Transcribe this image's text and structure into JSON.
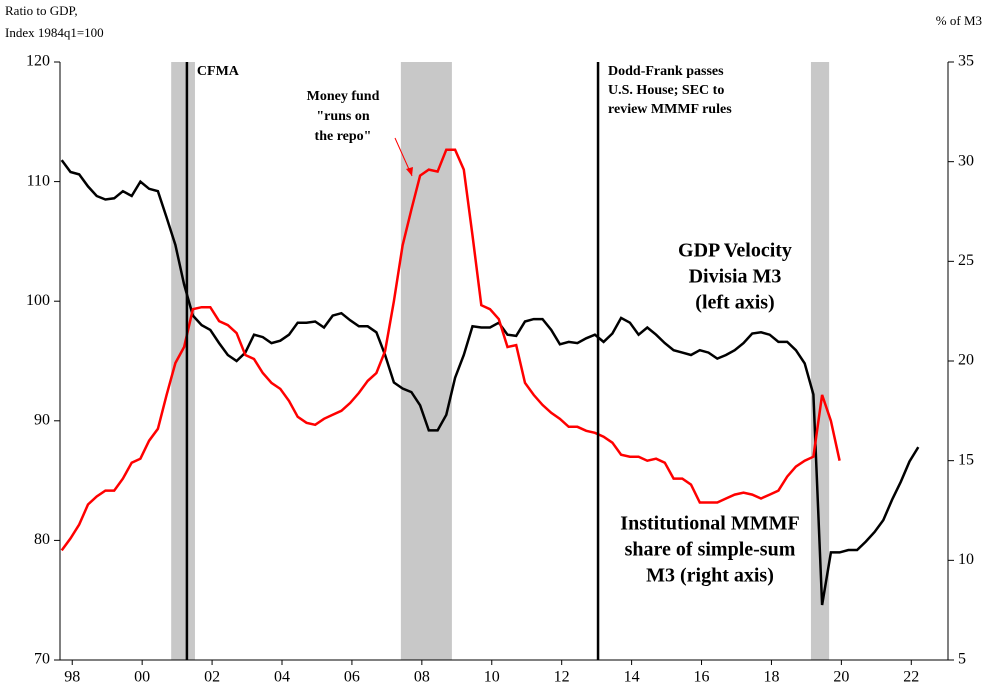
{
  "chart_data": {
    "type": "line",
    "y_axis_label": [
      "Ratio to GDP,",
      "Index 1984q1=100"
    ],
    "y2_axis_label": "% of M3",
    "xlim": [
      1997.65,
      2023.05
    ],
    "xticks": [
      {
        "value": 1998,
        "label": "98"
      },
      {
        "value": 2000,
        "label": "00"
      },
      {
        "value": 2002,
        "label": "02"
      },
      {
        "value": 2004,
        "label": "04"
      },
      {
        "value": 2006,
        "label": "06"
      },
      {
        "value": 2008,
        "label": "08"
      },
      {
        "value": 2010,
        "label": "10"
      },
      {
        "value": 2012,
        "label": "12"
      },
      {
        "value": 2014,
        "label": "14"
      },
      {
        "value": 2016,
        "label": "16"
      },
      {
        "value": 2018,
        "label": "18"
      },
      {
        "value": 2020,
        "label": "20"
      },
      {
        "value": 2022,
        "label": "22"
      }
    ],
    "ylim": [
      70,
      120
    ],
    "yticks": [
      70,
      80,
      90,
      100,
      110,
      120
    ],
    "y2lim": [
      5,
      35
    ],
    "y2ticks": [
      5,
      10,
      15,
      20,
      25,
      30,
      35
    ],
    "shaded_periods": [
      [
        2000.83,
        2001.51
      ],
      [
        2007.4,
        2008.86
      ],
      [
        2019.13,
        2019.65
      ]
    ],
    "shade_color": "#c8c8c8",
    "events": [
      {
        "x": 2001.28,
        "label": [
          "CFMA"
        ]
      },
      {
        "x": 2013.04,
        "label": [
          "Dodd-Frank passes",
          "U.S. House; SEC to",
          "review MMMF rules"
        ]
      }
    ],
    "annotations": [
      {
        "text": [
          "Money fund",
          "\"runs on",
          "the repo\""
        ],
        "color": "#ff0000"
      }
    ],
    "x": [
      1997.7,
      1997.95,
      1998.2,
      1998.45,
      1998.7,
      1998.95,
      1999.2,
      1999.45,
      1999.7,
      1999.95,
      2000.2,
      2000.45,
      2000.7,
      2000.95,
      2001.2,
      2001.45,
      2001.7,
      2001.95,
      2002.2,
      2002.45,
      2002.7,
      2002.95,
      2003.2,
      2003.45,
      2003.7,
      2003.95,
      2004.2,
      2004.45,
      2004.7,
      2004.95,
      2005.2,
      2005.45,
      2005.7,
      2005.95,
      2006.2,
      2006.45,
      2006.7,
      2006.95,
      2007.2,
      2007.45,
      2007.7,
      2007.95,
      2008.2,
      2008.45,
      2008.7,
      2008.95,
      2009.2,
      2009.45,
      2009.7,
      2009.95,
      2010.2,
      2010.45,
      2010.7,
      2010.95,
      2011.2,
      2011.45,
      2011.7,
      2011.95,
      2012.2,
      2012.45,
      2012.7,
      2012.95,
      2013.2,
      2013.45,
      2013.7,
      2013.95,
      2014.2,
      2014.45,
      2014.7,
      2014.95,
      2015.2,
      2015.45,
      2015.7,
      2015.95,
      2016.2,
      2016.45,
      2016.7,
      2016.95,
      2017.2,
      2017.45,
      2017.7,
      2017.95,
      2018.2,
      2018.45,
      2018.7,
      2018.95,
      2019.2,
      2019.45,
      2019.7,
      2019.95,
      2020.2,
      2020.45,
      2020.7,
      2020.95,
      2021.2,
      2021.45,
      2021.7,
      2021.95,
      2022.2
    ],
    "series": [
      {
        "name": [
          "GDP Velocity",
          "Divisia M3",
          "(left axis)"
        ],
        "color": "#000000",
        "axis": "y",
        "values": [
          111.8,
          110.8,
          110.6,
          109.6,
          108.8,
          108.5,
          108.6,
          109.2,
          108.8,
          110.0,
          109.4,
          109.2,
          107.0,
          104.7,
          101.4,
          98.8,
          98.0,
          97.6,
          96.5,
          95.5,
          95.0,
          95.7,
          97.2,
          97.0,
          96.5,
          96.7,
          97.2,
          98.2,
          98.2,
          98.3,
          97.8,
          98.8,
          99.0,
          98.4,
          97.9,
          97.9,
          97.4,
          95.5,
          93.2,
          92.7,
          92.4,
          91.3,
          89.2,
          89.2,
          90.5,
          93.6,
          95.5,
          97.9,
          97.8,
          97.8,
          98.2,
          97.2,
          97.1,
          98.3,
          98.5,
          98.5,
          97.6,
          96.4,
          96.6,
          96.5,
          96.9,
          97.2,
          96.6,
          97.3,
          98.6,
          98.2,
          97.2,
          97.8,
          97.2,
          96.5,
          95.9,
          95.7,
          95.5,
          95.9,
          95.7,
          95.2,
          95.5,
          95.9,
          96.5,
          97.3,
          97.4,
          97.2,
          96.6,
          96.6,
          95.9,
          94.8,
          92.2,
          74.6,
          79.0,
          79.0,
          79.2,
          79.2,
          79.9,
          80.7,
          81.7,
          83.4,
          84.9,
          86.6,
          87.8
        ]
      },
      {
        "name": [
          "Institutional MMMF",
          "share of simple-sum",
          "M3 (right axis)"
        ],
        "color": "#ff0000",
        "axis": "y2",
        "values": [
          10.5,
          11.1,
          11.8,
          12.8,
          13.2,
          13.5,
          13.5,
          14.1,
          14.9,
          15.1,
          16.0,
          16.6,
          18.3,
          19.9,
          20.7,
          22.6,
          22.7,
          22.7,
          22.0,
          21.8,
          21.4,
          20.3,
          20.1,
          19.4,
          18.9,
          18.6,
          18.0,
          17.2,
          16.9,
          16.8,
          17.1,
          17.3,
          17.5,
          17.9,
          18.4,
          19.0,
          19.4,
          20.5,
          23.0,
          25.8,
          27.6,
          29.3,
          29.6,
          29.5,
          30.6,
          30.6,
          29.6,
          26.3,
          22.8,
          22.6,
          22.1,
          20.7,
          20.8,
          18.9,
          18.3,
          17.8,
          17.4,
          17.1,
          16.7,
          16.7,
          16.5,
          16.4,
          16.2,
          15.9,
          15.3,
          15.2,
          15.2,
          15.0,
          15.1,
          14.9,
          14.1,
          14.1,
          13.8,
          12.9,
          12.9,
          12.9,
          13.1,
          13.3,
          13.4,
          13.3,
          13.1,
          13.3,
          13.5,
          14.2,
          14.7,
          15.0,
          15.2,
          18.3,
          17.0,
          15.0,
          null,
          null,
          null,
          null,
          null,
          null,
          null,
          null,
          null
        ]
      }
    ]
  }
}
